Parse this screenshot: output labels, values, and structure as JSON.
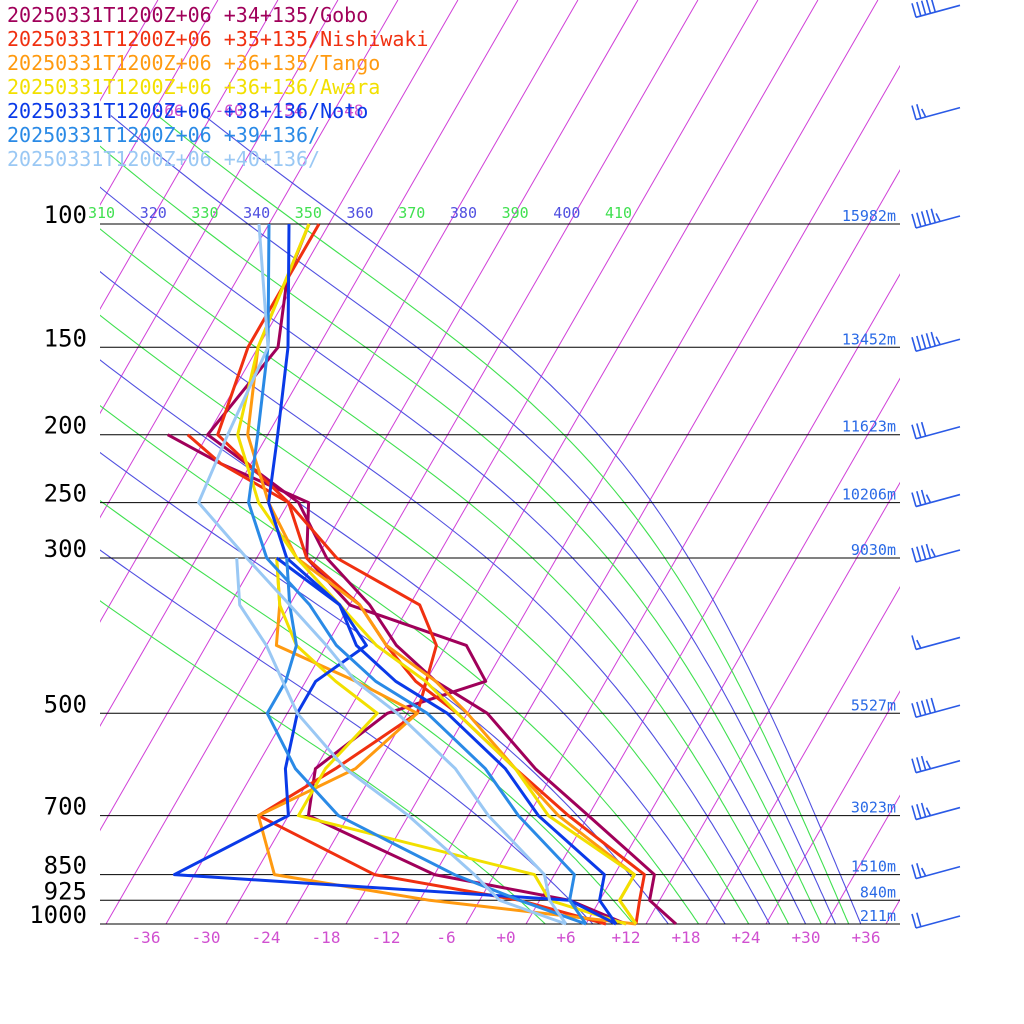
{
  "legend": [
    {
      "label": "20250331T1200Z+06 +34+135/Gobo",
      "color": "#a0005a"
    },
    {
      "label": "20250331T1200Z+06 +35+135/Nishiwaki",
      "color": "#f03010"
    },
    {
      "label": "20250331T1200Z+06 +36+135/Tango",
      "color": "#ff9a10"
    },
    {
      "label": "20250331T1200Z+06 +36+136/Awara",
      "color": "#f2e000"
    },
    {
      "label": "20250331T1200Z+06 +38+136/Noto",
      "color": "#0a3ae8"
    },
    {
      "label": "20250331T1200Z+06 +39+136/",
      "color": "#2a8ae6"
    },
    {
      "label": "20250331T1200Z+06 +40+136/",
      "color": "#9ac8f4"
    }
  ],
  "chart_data": {
    "type": "line",
    "subtype": "skew-T log-p sounding",
    "y_axis": {
      "scale": "log pressure",
      "unit": "hPa",
      "range": [
        1000,
        100
      ],
      "ticks": [
        "100",
        "150",
        "200",
        "250",
        "300",
        "500",
        "700",
        "850",
        "925",
        "1000"
      ]
    },
    "x_axis": {
      "unit": "temperature (°C), skewed",
      "ticks": [
        "-36",
        "-30",
        "-24",
        "-18",
        "-12",
        "-6",
        "+0",
        "+6",
        "+12",
        "+18",
        "+24",
        "+30",
        "+36"
      ]
    },
    "upper_isotherm_labels": [
      "-66",
      "-60",
      "-54",
      "-48"
    ],
    "theta_e_labels": [
      "310",
      "320",
      "330",
      "340",
      "350",
      "360",
      "370",
      "380",
      "390",
      "400",
      "410"
    ],
    "heights": [
      {
        "p": 100,
        "label": "15982m"
      },
      {
        "p": 150,
        "label": "13452m"
      },
      {
        "p": 200,
        "label": "11623m"
      },
      {
        "p": 250,
        "label": "10206m"
      },
      {
        "p": 300,
        "label": "9030m"
      },
      {
        "p": 500,
        "label": "5527m"
      },
      {
        "p": 700,
        "label": "3023m"
      },
      {
        "p": 850,
        "label": "1510m"
      },
      {
        "p": 925,
        "label": "840m"
      },
      {
        "p": 1000,
        "label": "211m"
      }
    ],
    "series": [
      {
        "name": "20250331T1200Z+06 +34+135/Gobo",
        "temperature": [
          [
            1000,
            17
          ],
          [
            925,
            13
          ],
          [
            850,
            12
          ],
          [
            700,
            2
          ],
          [
            600,
            -6
          ],
          [
            500,
            -14
          ],
          [
            450,
            -21
          ],
          [
            400,
            -27
          ],
          [
            350,
            -32
          ],
          [
            300,
            -39
          ],
          [
            250,
            -45
          ],
          [
            200,
            -58
          ],
          [
            150,
            -56
          ],
          [
            120,
            -59
          ],
          [
            100,
            -60
          ]
        ],
        "dewpoint": [
          [
            1000,
            12
          ],
          [
            925,
            5
          ],
          [
            850,
            -10
          ],
          [
            700,
            -26
          ],
          [
            600,
            -28
          ],
          [
            500,
            -24
          ],
          [
            450,
            -16
          ],
          [
            400,
            -20
          ],
          [
            350,
            -34
          ],
          [
            300,
            -41
          ],
          [
            250,
            -44
          ],
          [
            220,
            -55
          ],
          [
            200,
            -62
          ]
        ]
      },
      {
        "name": "20250331T1200Z+06 +35+135/Nishiwaki",
        "temperature": [
          [
            1000,
            13
          ],
          [
            925,
            12
          ],
          [
            850,
            11
          ],
          [
            700,
            0
          ],
          [
            600,
            -8
          ],
          [
            500,
            -17
          ],
          [
            450,
            -23
          ],
          [
            400,
            -28
          ],
          [
            350,
            -33
          ],
          [
            300,
            -41
          ],
          [
            250,
            -46
          ],
          [
            200,
            -57
          ],
          [
            150,
            -59
          ],
          [
            100,
            -59
          ]
        ],
        "dewpoint": [
          [
            1000,
            10
          ],
          [
            925,
            0
          ],
          [
            850,
            -16
          ],
          [
            700,
            -31
          ],
          [
            600,
            -26
          ],
          [
            500,
            -21
          ],
          [
            400,
            -23
          ],
          [
            350,
            -27
          ],
          [
            300,
            -38
          ],
          [
            250,
            -46
          ],
          [
            220,
            -55
          ],
          [
            200,
            -60
          ]
        ]
      },
      {
        "name": "20250331T1200Z+06 +36+135/Tango",
        "temperature": [
          [
            1000,
            13
          ],
          [
            925,
            10
          ],
          [
            850,
            10
          ],
          [
            700,
            -1
          ],
          [
            600,
            -8
          ],
          [
            500,
            -16
          ],
          [
            450,
            -21
          ],
          [
            400,
            -28
          ],
          [
            350,
            -33
          ],
          [
            300,
            -42
          ],
          [
            250,
            -48
          ],
          [
            200,
            -54
          ],
          [
            150,
            -58
          ],
          [
            100,
            -60
          ]
        ],
        "dewpoint": [
          [
            1000,
            13
          ],
          [
            925,
            -9
          ],
          [
            850,
            -26
          ],
          [
            700,
            -31
          ],
          [
            600,
            -24
          ],
          [
            500,
            -21
          ],
          [
            450,
            -29
          ],
          [
            400,
            -39
          ],
          [
            350,
            -41
          ],
          [
            300,
            -44
          ]
        ]
      },
      {
        "name": "20250331T1200Z+06 +36+136/Awara",
        "temperature": [
          [
            1000,
            13
          ],
          [
            925,
            10
          ],
          [
            850,
            10
          ],
          [
            700,
            -2
          ],
          [
            600,
            -8
          ],
          [
            500,
            -17
          ],
          [
            450,
            -22
          ],
          [
            400,
            -29
          ],
          [
            350,
            -35
          ],
          [
            300,
            -42
          ],
          [
            250,
            -49
          ],
          [
            200,
            -55
          ],
          [
            150,
            -58
          ],
          [
            100,
            -60
          ]
        ],
        "dewpoint": [
          [
            1000,
            12
          ],
          [
            925,
            3
          ],
          [
            850,
            0
          ],
          [
            700,
            -27
          ],
          [
            600,
            -27
          ],
          [
            500,
            -25
          ],
          [
            450,
            -31
          ],
          [
            400,
            -37
          ],
          [
            350,
            -41
          ],
          [
            300,
            -44
          ]
        ]
      },
      {
        "name": "20250331T1200Z+06 +38+136/Noto",
        "temperature": [
          [
            1000,
            11
          ],
          [
            925,
            8
          ],
          [
            850,
            7
          ],
          [
            700,
            -3
          ],
          [
            600,
            -9
          ],
          [
            500,
            -18
          ],
          [
            450,
            -25
          ],
          [
            400,
            -31
          ],
          [
            350,
            -35
          ],
          [
            300,
            -43
          ],
          [
            250,
            -48
          ],
          [
            200,
            -51
          ],
          [
            150,
            -55
          ],
          [
            100,
            -62
          ]
        ],
        "dewpoint": [
          [
            1000,
            11
          ],
          [
            925,
            5
          ],
          [
            850,
            -36
          ],
          [
            700,
            -28
          ],
          [
            600,
            -31
          ],
          [
            500,
            -33
          ],
          [
            450,
            -33
          ],
          [
            400,
            -30
          ],
          [
            350,
            -35
          ],
          [
            300,
            -44
          ]
        ]
      },
      {
        "name": "20250331T1200Z+06 +39+136/",
        "temperature": [
          [
            1000,
            8
          ],
          [
            925,
            5
          ],
          [
            850,
            4
          ],
          [
            700,
            -5
          ],
          [
            600,
            -11
          ],
          [
            500,
            -20
          ],
          [
            450,
            -27
          ],
          [
            400,
            -33
          ],
          [
            350,
            -38
          ],
          [
            300,
            -45
          ],
          [
            250,
            -50
          ],
          [
            200,
            -53
          ],
          [
            150,
            -57
          ],
          [
            100,
            -64
          ]
        ],
        "dewpoint": [
          [
            1000,
            8
          ],
          [
            925,
            0
          ],
          [
            850,
            -8
          ],
          [
            700,
            -23
          ],
          [
            600,
            -30
          ],
          [
            500,
            -36
          ],
          [
            450,
            -36
          ],
          [
            400,
            -37
          ],
          [
            350,
            -40
          ],
          [
            300,
            -43
          ]
        ]
      },
      {
        "name": "20250331T1200Z+06 +40+136/",
        "temperature": [
          [
            1000,
            6
          ],
          [
            925,
            3
          ],
          [
            850,
            1
          ],
          [
            700,
            -8
          ],
          [
            600,
            -14
          ],
          [
            500,
            -23
          ],
          [
            450,
            -29
          ],
          [
            400,
            -34
          ],
          [
            350,
            -40
          ],
          [
            300,
            -47
          ],
          [
            250,
            -55
          ],
          [
            200,
            -56
          ],
          [
            150,
            -57
          ],
          [
            100,
            -65
          ]
        ],
        "dewpoint": [
          [
            1000,
            6
          ],
          [
            925,
            -2
          ],
          [
            850,
            -6
          ],
          [
            700,
            -16
          ],
          [
            600,
            -25
          ],
          [
            500,
            -33
          ],
          [
            400,
            -40
          ],
          [
            350,
            -45
          ],
          [
            300,
            -48
          ]
        ]
      }
    ],
    "wind_barbs": [
      {
        "p": 1000,
        "speed_kt": 20
      },
      {
        "p": 850,
        "speed_kt": 25
      },
      {
        "p": 700,
        "speed_kt": 35
      },
      {
        "p": 600,
        "speed_kt": 35
      },
      {
        "p": 500,
        "speed_kt": 50
      },
      {
        "p": 400,
        "speed_kt": 15
      },
      {
        "p": 300,
        "speed_kt": 45
      },
      {
        "p": 250,
        "speed_kt": 35
      },
      {
        "p": 200,
        "speed_kt": 30
      },
      {
        "p": 150,
        "speed_kt": 55
      },
      {
        "p": 100,
        "speed_kt": 55
      },
      {
        "p": 70,
        "speed_kt": 25
      },
      {
        "p": 50,
        "speed_kt": 50
      }
    ],
    "colors": {
      "isotherm": "#d040d8",
      "isotherm_label": "#d050d0",
      "theta_e_a": "#5050e0",
      "theta_e_b": "#40e050",
      "isobar": "#000000",
      "height_label": "#2a6ae6",
      "barb": "#2a5ae6"
    }
  }
}
